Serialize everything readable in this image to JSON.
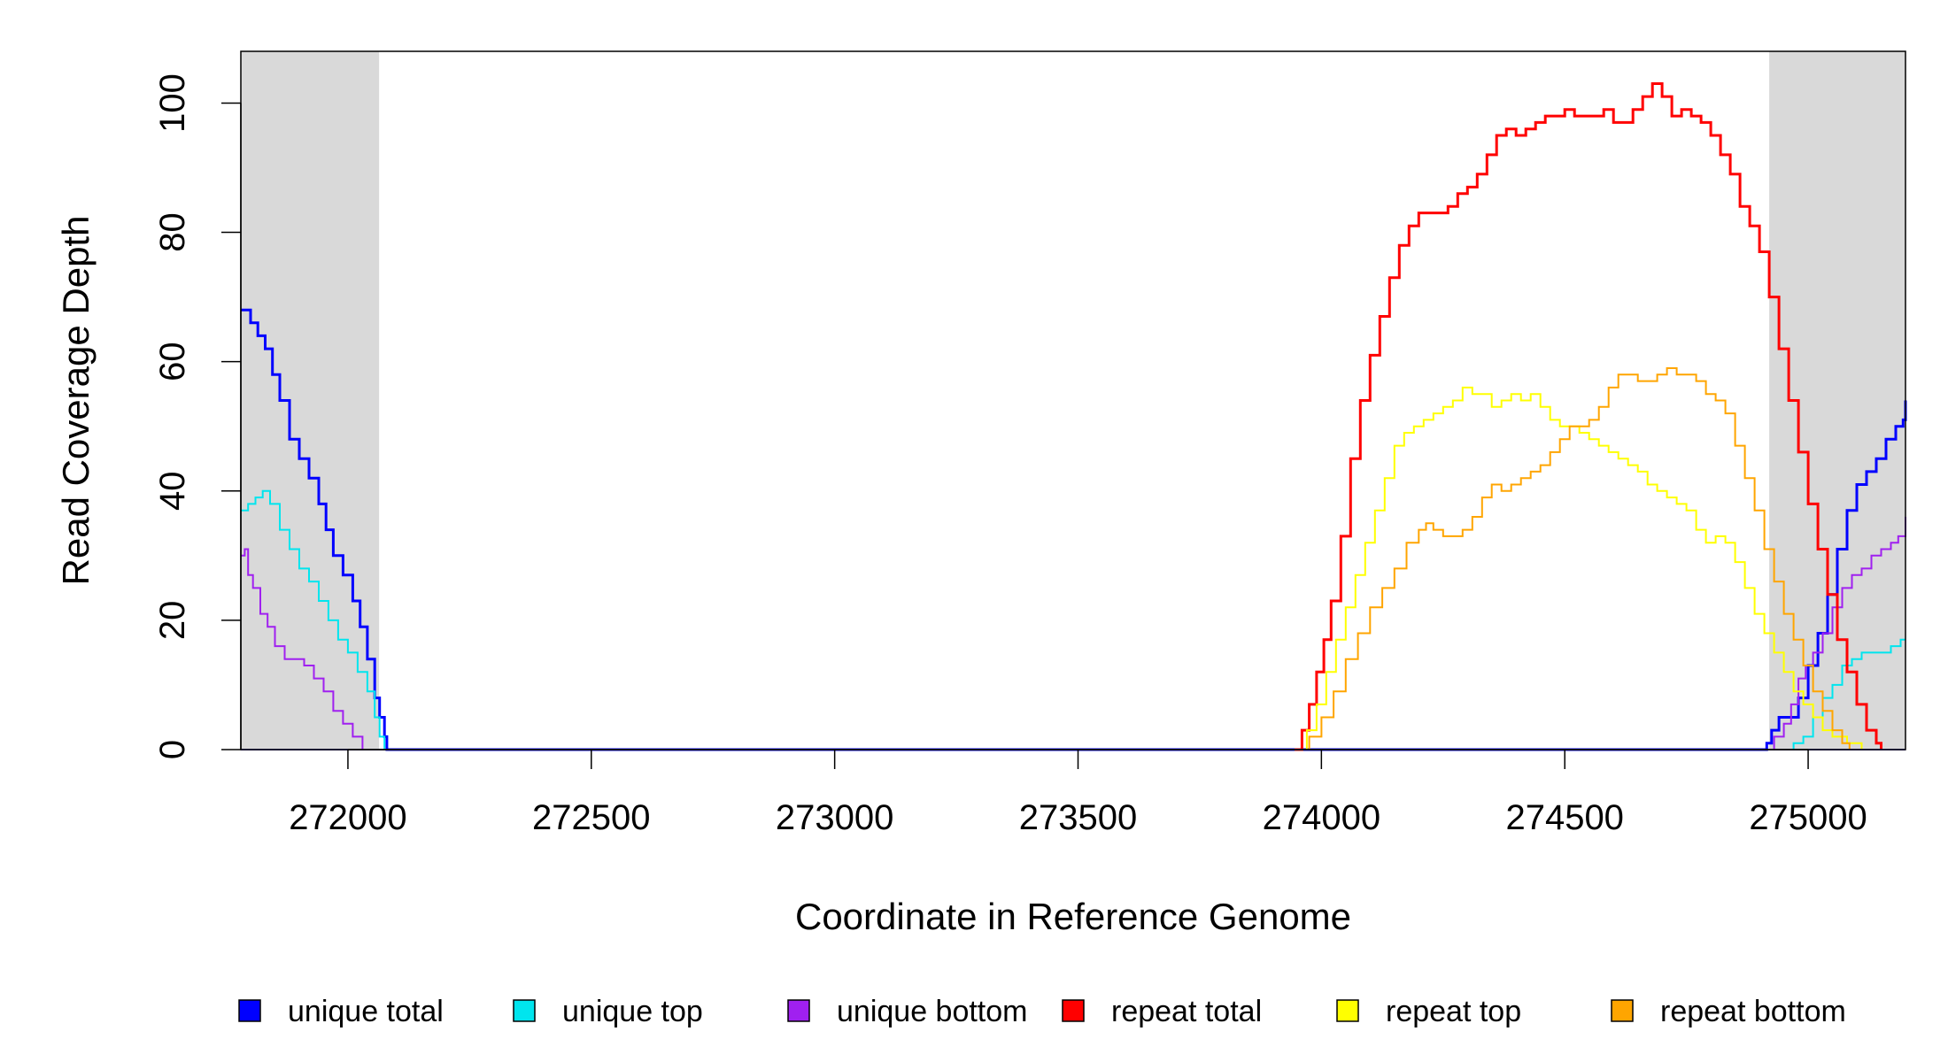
{
  "chart_data": {
    "type": "line",
    "xlabel": "Coordinate in Reference Genome",
    "ylabel": "Read Coverage Depth",
    "xlim": [
      271780,
      275200
    ],
    "ylim": [
      0,
      108
    ],
    "x_ticks": [
      272000,
      272500,
      273000,
      273500,
      274000,
      274500,
      275000
    ],
    "y_ticks": [
      0,
      20,
      40,
      60,
      80,
      100
    ],
    "shaded_regions": [
      {
        "from": 271780,
        "to": 272064,
        "color": "#d9d9d9"
      },
      {
        "from": 274920,
        "to": 275200,
        "color": "#d9d9d9"
      }
    ],
    "grid": false,
    "legend_placement": "bottom",
    "series": [
      {
        "name": "unique total",
        "color": "#0000ff",
        "width": 3,
        "points": [
          [
            271780,
            68
          ],
          [
            271790,
            68
          ],
          [
            271800,
            66
          ],
          [
            271815,
            64
          ],
          [
            271830,
            62
          ],
          [
            271845,
            58
          ],
          [
            271860,
            54
          ],
          [
            271880,
            48
          ],
          [
            271900,
            45
          ],
          [
            271920,
            42
          ],
          [
            271940,
            38
          ],
          [
            271955,
            34
          ],
          [
            271970,
            30
          ],
          [
            271990,
            27
          ],
          [
            272010,
            23
          ],
          [
            272025,
            19
          ],
          [
            272040,
            14
          ],
          [
            272055,
            8
          ],
          [
            272065,
            5
          ],
          [
            272075,
            2
          ],
          [
            272080,
            0
          ],
          [
            274905,
            0
          ],
          [
            274915,
            1
          ],
          [
            274925,
            3
          ],
          [
            274940,
            5
          ],
          [
            274960,
            5
          ],
          [
            274980,
            8
          ],
          [
            275000,
            13
          ],
          [
            275020,
            18
          ],
          [
            275040,
            24
          ],
          [
            275060,
            31
          ],
          [
            275080,
            37
          ],
          [
            275100,
            41
          ],
          [
            275120,
            43
          ],
          [
            275140,
            45
          ],
          [
            275160,
            48
          ],
          [
            275180,
            50
          ],
          [
            275195,
            51
          ],
          [
            275200,
            54
          ]
        ]
      },
      {
        "name": "unique top",
        "color": "#00e5ee",
        "width": 2,
        "points": [
          [
            271780,
            37
          ],
          [
            271795,
            38
          ],
          [
            271810,
            39
          ],
          [
            271825,
            40
          ],
          [
            271840,
            38
          ],
          [
            271860,
            34
          ],
          [
            271880,
            31
          ],
          [
            271900,
            28
          ],
          [
            271920,
            26
          ],
          [
            271940,
            23
          ],
          [
            271960,
            20
          ],
          [
            271980,
            17
          ],
          [
            272000,
            15
          ],
          [
            272020,
            12
          ],
          [
            272040,
            9
          ],
          [
            272055,
            5
          ],
          [
            272065,
            2
          ],
          [
            272075,
            0
          ],
          [
            274925,
            0
          ],
          [
            274970,
            1
          ],
          [
            274990,
            2
          ],
          [
            275010,
            5
          ],
          [
            275030,
            8
          ],
          [
            275050,
            10
          ],
          [
            275070,
            13
          ],
          [
            275090,
            14
          ],
          [
            275110,
            15
          ],
          [
            275140,
            15
          ],
          [
            275170,
            16
          ],
          [
            275190,
            17
          ],
          [
            275200,
            17
          ]
        ]
      },
      {
        "name": "unique bottom",
        "color": "#a020f0",
        "width": 2,
        "points": [
          [
            271780,
            30
          ],
          [
            271788,
            31
          ],
          [
            271795,
            27
          ],
          [
            271805,
            25
          ],
          [
            271820,
            21
          ],
          [
            271835,
            19
          ],
          [
            271850,
            16
          ],
          [
            271870,
            14
          ],
          [
            271890,
            14
          ],
          [
            271910,
            13
          ],
          [
            271930,
            11
          ],
          [
            271950,
            9
          ],
          [
            271970,
            6
          ],
          [
            271990,
            4
          ],
          [
            272010,
            2
          ],
          [
            272030,
            0
          ],
          [
            274920,
            0
          ],
          [
            274930,
            2
          ],
          [
            274950,
            4
          ],
          [
            274965,
            7
          ],
          [
            274980,
            11
          ],
          [
            274995,
            13
          ],
          [
            275010,
            15
          ],
          [
            275030,
            18
          ],
          [
            275050,
            22
          ],
          [
            275070,
            25
          ],
          [
            275090,
            27
          ],
          [
            275110,
            28
          ],
          [
            275130,
            30
          ],
          [
            275150,
            31
          ],
          [
            275170,
            32
          ],
          [
            275185,
            33
          ],
          [
            275200,
            36
          ]
        ]
      },
      {
        "name": "repeat total",
        "color": "#ff0000",
        "width": 3,
        "points": [
          [
            273945,
            0
          ],
          [
            273960,
            3
          ],
          [
            273975,
            7
          ],
          [
            273990,
            12
          ],
          [
            274005,
            17
          ],
          [
            274020,
            23
          ],
          [
            274040,
            33
          ],
          [
            274060,
            45
          ],
          [
            274080,
            54
          ],
          [
            274100,
            61
          ],
          [
            274120,
            67
          ],
          [
            274140,
            73
          ],
          [
            274160,
            78
          ],
          [
            274180,
            81
          ],
          [
            274200,
            83
          ],
          [
            274220,
            83
          ],
          [
            274240,
            83
          ],
          [
            274260,
            84
          ],
          [
            274280,
            86
          ],
          [
            274300,
            87
          ],
          [
            274320,
            89
          ],
          [
            274340,
            92
          ],
          [
            274360,
            95
          ],
          [
            274380,
            96
          ],
          [
            274400,
            95
          ],
          [
            274420,
            96
          ],
          [
            274440,
            97
          ],
          [
            274460,
            98
          ],
          [
            274480,
            98
          ],
          [
            274500,
            99
          ],
          [
            274520,
            98
          ],
          [
            274540,
            98
          ],
          [
            274560,
            98
          ],
          [
            274580,
            99
          ],
          [
            274600,
            97
          ],
          [
            274620,
            97
          ],
          [
            274640,
            99
          ],
          [
            274660,
            101
          ],
          [
            274680,
            103
          ],
          [
            274700,
            101
          ],
          [
            274720,
            98
          ],
          [
            274740,
            99
          ],
          [
            274760,
            98
          ],
          [
            274780,
            97
          ],
          [
            274800,
            95
          ],
          [
            274820,
            92
          ],
          [
            274840,
            89
          ],
          [
            274860,
            84
          ],
          [
            274880,
            81
          ],
          [
            274900,
            77
          ],
          [
            274920,
            70
          ],
          [
            274940,
            62
          ],
          [
            274960,
            54
          ],
          [
            274980,
            46
          ],
          [
            275000,
            38
          ],
          [
            275020,
            31
          ],
          [
            275040,
            24
          ],
          [
            275060,
            17
          ],
          [
            275080,
            12
          ],
          [
            275100,
            7
          ],
          [
            275120,
            3
          ],
          [
            275140,
            1
          ],
          [
            275150,
            0
          ]
        ]
      },
      {
        "name": "repeat top",
        "color": "#ffff00",
        "width": 2,
        "points": [
          [
            273945,
            0
          ],
          [
            273970,
            3
          ],
          [
            273990,
            7
          ],
          [
            274010,
            12
          ],
          [
            274030,
            17
          ],
          [
            274050,
            22
          ],
          [
            274070,
            27
          ],
          [
            274090,
            32
          ],
          [
            274110,
            37
          ],
          [
            274130,
            42
          ],
          [
            274150,
            47
          ],
          [
            274170,
            49
          ],
          [
            274190,
            50
          ],
          [
            274210,
            51
          ],
          [
            274230,
            52
          ],
          [
            274250,
            53
          ],
          [
            274270,
            54
          ],
          [
            274290,
            56
          ],
          [
            274310,
            55
          ],
          [
            274330,
            55
          ],
          [
            274350,
            53
          ],
          [
            274370,
            54
          ],
          [
            274390,
            55
          ],
          [
            274410,
            54
          ],
          [
            274430,
            55
          ],
          [
            274450,
            53
          ],
          [
            274470,
            51
          ],
          [
            274490,
            50
          ],
          [
            274510,
            50
          ],
          [
            274530,
            49
          ],
          [
            274550,
            48
          ],
          [
            274570,
            47
          ],
          [
            274590,
            46
          ],
          [
            274610,
            45
          ],
          [
            274630,
            44
          ],
          [
            274650,
            43
          ],
          [
            274670,
            41
          ],
          [
            274690,
            40
          ],
          [
            274710,
            39
          ],
          [
            274730,
            38
          ],
          [
            274750,
            37
          ],
          [
            274770,
            34
          ],
          [
            274790,
            32
          ],
          [
            274810,
            33
          ],
          [
            274830,
            32
          ],
          [
            274850,
            29
          ],
          [
            274870,
            25
          ],
          [
            274890,
            21
          ],
          [
            274910,
            18
          ],
          [
            274930,
            15
          ],
          [
            274950,
            12
          ],
          [
            274970,
            9
          ],
          [
            274990,
            7
          ],
          [
            275010,
            5
          ],
          [
            275030,
            3
          ],
          [
            275050,
            2
          ],
          [
            275080,
            1
          ],
          [
            275110,
            0
          ]
        ]
      },
      {
        "name": "repeat bottom",
        "color": "#ffa500",
        "width": 2,
        "points": [
          [
            273950,
            0
          ],
          [
            273975,
            2
          ],
          [
            274000,
            5
          ],
          [
            274025,
            9
          ],
          [
            274050,
            14
          ],
          [
            274075,
            18
          ],
          [
            274100,
            22
          ],
          [
            274125,
            25
          ],
          [
            274150,
            28
          ],
          [
            274175,
            32
          ],
          [
            274200,
            34
          ],
          [
            274215,
            35
          ],
          [
            274230,
            34
          ],
          [
            274250,
            33
          ],
          [
            274270,
            33
          ],
          [
            274290,
            34
          ],
          [
            274310,
            36
          ],
          [
            274330,
            39
          ],
          [
            274350,
            41
          ],
          [
            274370,
            40
          ],
          [
            274390,
            41
          ],
          [
            274410,
            42
          ],
          [
            274430,
            43
          ],
          [
            274450,
            44
          ],
          [
            274470,
            46
          ],
          [
            274490,
            48
          ],
          [
            274510,
            50
          ],
          [
            274530,
            50
          ],
          [
            274550,
            51
          ],
          [
            274570,
            53
          ],
          [
            274590,
            56
          ],
          [
            274610,
            58
          ],
          [
            274630,
            58
          ],
          [
            274650,
            57
          ],
          [
            274670,
            57
          ],
          [
            274690,
            58
          ],
          [
            274710,
            59
          ],
          [
            274730,
            58
          ],
          [
            274750,
            58
          ],
          [
            274770,
            57
          ],
          [
            274790,
            55
          ],
          [
            274810,
            54
          ],
          [
            274830,
            52
          ],
          [
            274850,
            47
          ],
          [
            274870,
            42
          ],
          [
            274890,
            37
          ],
          [
            274910,
            31
          ],
          [
            274930,
            26
          ],
          [
            274950,
            21
          ],
          [
            274970,
            17
          ],
          [
            274990,
            13
          ],
          [
            275010,
            9
          ],
          [
            275030,
            6
          ],
          [
            275050,
            3
          ],
          [
            275070,
            1
          ],
          [
            275085,
            0
          ]
        ]
      }
    ]
  }
}
